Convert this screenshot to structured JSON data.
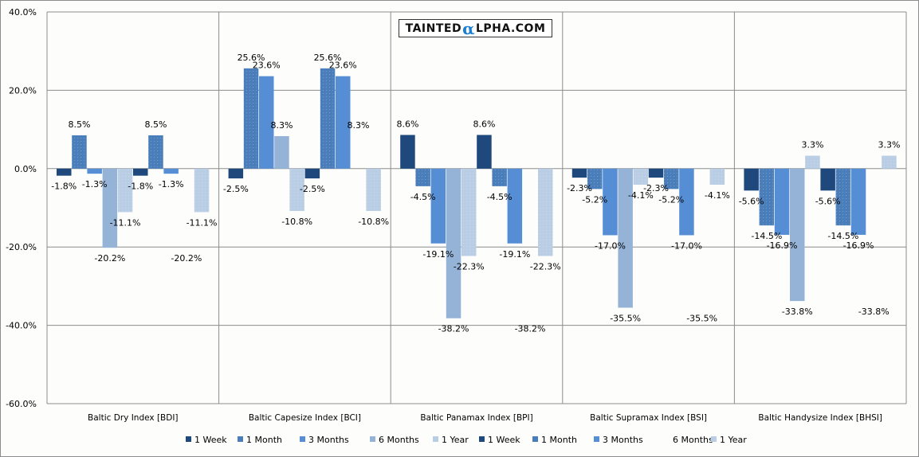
{
  "chart_data": {
    "type": "bar",
    "title": "",
    "xlabel": "",
    "ylabel": "",
    "ylim": [
      -60,
      40
    ],
    "ytick_step": 20,
    "yticks": [
      "40.0%",
      "20.0%",
      "0.0%",
      "-20.0%",
      "-40.0%",
      "-60.0%"
    ],
    "grid": true,
    "legend_position": "bottom",
    "categories": [
      "Baltic Dry Index [BDI]",
      "Baltic Capesize Index [BCI]",
      "Baltic Panamax Index [BPI]",
      "Baltic Supramax Index [BSI]",
      "Baltic Handysize Index [BHSI]"
    ],
    "series": [
      {
        "name": "1 Week",
        "color": "#1f497d",
        "values": [
          -1.8,
          -2.5,
          8.6,
          -2.3,
          -5.6
        ],
        "labels": [
          "-1.8%",
          "-2.5%",
          "8.6%",
          "-2.3%",
          "-5.6%"
        ]
      },
      {
        "name": "1 Month",
        "color": "#4a7ebb",
        "values": [
          8.5,
          25.6,
          -4.5,
          -5.2,
          -14.5
        ],
        "labels": [
          "8.5%",
          "25.6%",
          "-4.5%",
          "-5.2%",
          "-14.5%"
        ]
      },
      {
        "name": "3 Months",
        "color": "#558ed5",
        "values": [
          -1.3,
          23.6,
          -19.1,
          -17.0,
          -16.9
        ],
        "labels": [
          "-1.3%",
          "23.6%",
          "-19.1%",
          "-17.0%",
          "-16.9%"
        ]
      },
      {
        "name": "6 Months",
        "color": "#95b3d7",
        "values": [
          -20.2,
          8.3,
          -38.2,
          -35.5,
          -33.8
        ],
        "labels": [
          "-20.2%",
          "8.3%",
          "-38.2%",
          "-35.5%",
          "-33.8%"
        ]
      },
      {
        "name": "1 Year",
        "color": "#b9cde5",
        "values": [
          -11.1,
          -10.8,
          -22.3,
          -4.1,
          3.3
        ],
        "labels": [
          "-11.1%",
          "-10.8%",
          "-22.3%",
          "-4.1%",
          "3.3%"
        ]
      },
      {
        "name": "1 Week",
        "color": "#1f497d",
        "values": [
          -1.8,
          -2.5,
          8.6,
          -2.3,
          -5.6
        ],
        "labels": [
          "-1.8%",
          "-2.5%",
          "8.6%",
          "-2.3%",
          "-5.6%"
        ]
      },
      {
        "name": "1 Month",
        "color": "#4a7ebb",
        "values": [
          8.5,
          25.6,
          -4.5,
          -5.2,
          -14.5
        ],
        "labels": [
          "8.5%",
          "25.6%",
          "-4.5%",
          "-5.2%",
          "-14.5%"
        ]
      },
      {
        "name": "3 Months",
        "color": "#558ed5",
        "values": [
          -1.3,
          23.6,
          -19.1,
          -17.0,
          -16.9
        ],
        "labels": [
          "-1.3%",
          "23.6%",
          "-19.1%",
          "-17.0%",
          "-16.9%"
        ]
      },
      {
        "name": "6 Months",
        "color": "none",
        "values": [
          -20.2,
          8.3,
          -38.2,
          -35.5,
          -33.8
        ],
        "labels": [
          "-20.2%",
          "8.3%",
          "-38.2%",
          "-35.5%",
          "-33.8%"
        ],
        "bars_visible": false
      },
      {
        "name": "1 Year",
        "color": "#b9cde5",
        "values": [
          -11.1,
          -10.8,
          -22.3,
          -4.1,
          3.3
        ],
        "labels": [
          "-11.1%",
          "-10.8%",
          "-22.3%",
          "-4.1%",
          "3.3%"
        ]
      }
    ]
  },
  "watermark": {
    "before": "TAINTED",
    "alpha": "α",
    "after": "LPHA.COM"
  }
}
